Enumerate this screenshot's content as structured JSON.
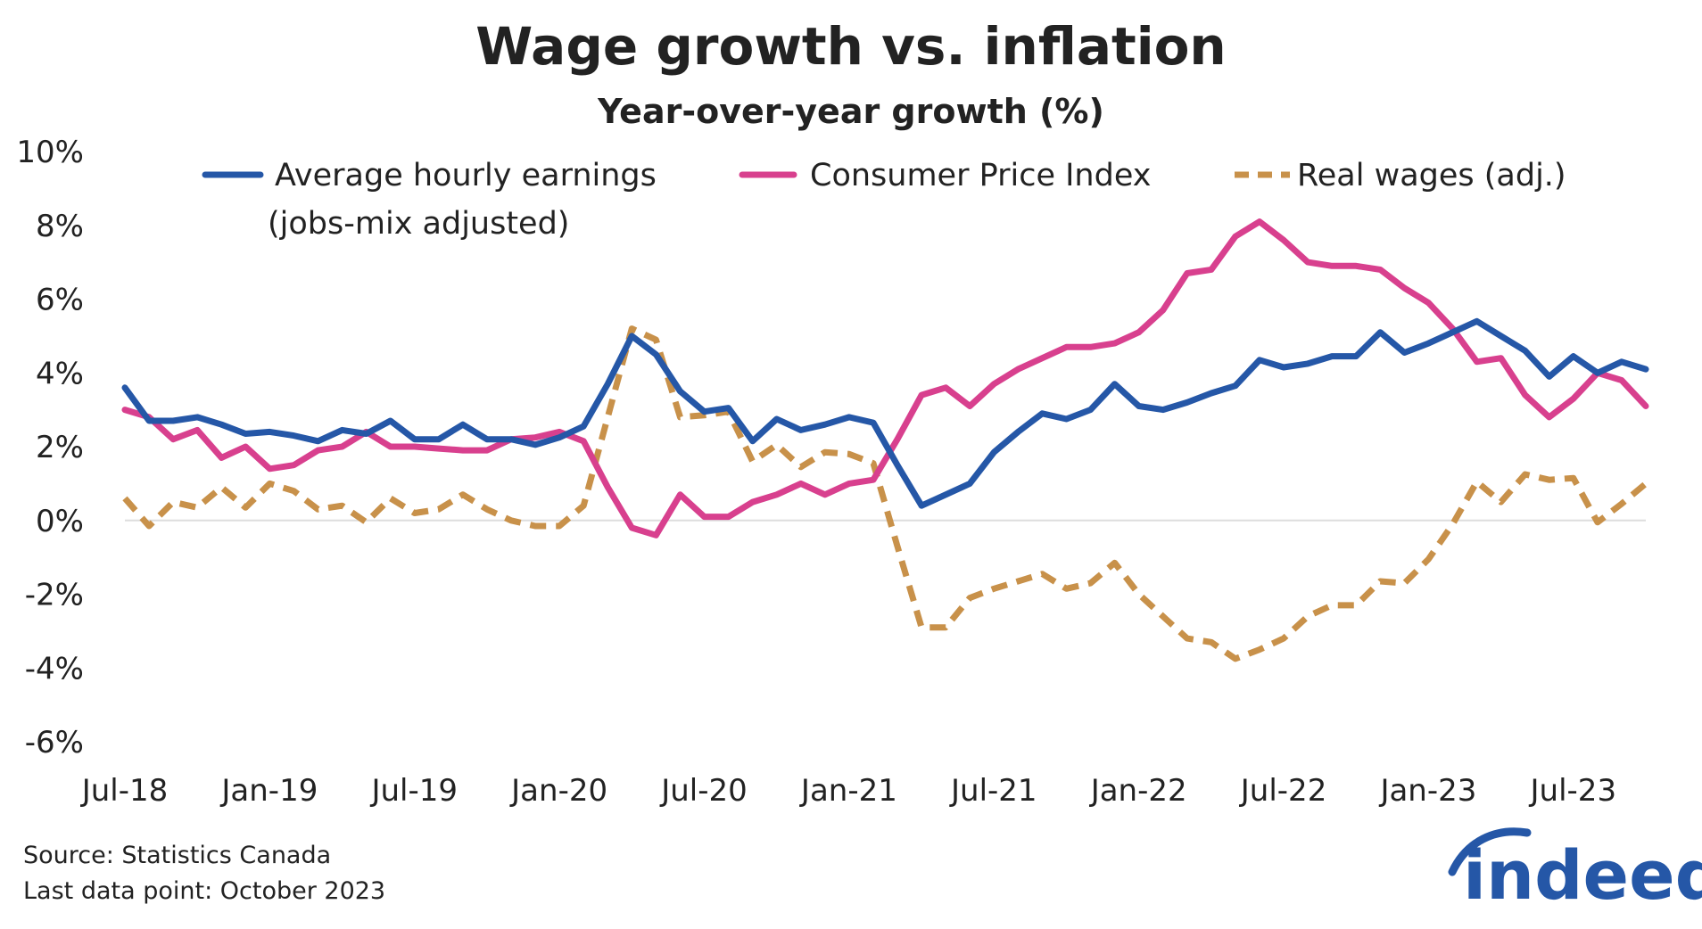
{
  "chart_data": {
    "type": "line",
    "title": "Wage growth vs. inflation",
    "subtitle": "Year-over-year growth (%)",
    "xlabel": "",
    "ylabel": "",
    "ylim": [
      -6,
      10
    ],
    "yticks": [
      -6,
      -4,
      -2,
      0,
      2,
      4,
      6,
      8,
      10
    ],
    "ytick_labels": [
      "-6%",
      "-4%",
      "-2%",
      "0%",
      "2%",
      "4%",
      "6%",
      "8%",
      "10%"
    ],
    "xtick_labels": [
      "Jul-18",
      "Jan-19",
      "Jul-19",
      "Jan-20",
      "Jul-20",
      "Jan-21",
      "Jul-21",
      "Jan-22",
      "Jul-22",
      "Jan-23",
      "Jul-23"
    ],
    "xtick_indices": [
      0,
      6,
      12,
      18,
      24,
      30,
      36,
      42,
      48,
      54,
      60
    ],
    "x_start": "Jul-18",
    "x_end": "Oct-23",
    "zero_line": true,
    "legend_position": "top",
    "series": [
      {
        "name": "Average hourly earnings",
        "name_line2": "(jobs-mix adjusted)",
        "color": "#2557a7",
        "style": "solid",
        "values": [
          3.6,
          2.7,
          2.7,
          2.8,
          2.6,
          2.35,
          2.4,
          2.3,
          2.15,
          2.45,
          2.35,
          2.7,
          2.2,
          2.2,
          2.6,
          2.2,
          2.2,
          2.05,
          2.25,
          2.55,
          3.7,
          5.0,
          4.5,
          3.5,
          2.95,
          3.05,
          2.15,
          2.75,
          2.45,
          2.6,
          2.8,
          2.65,
          1.5,
          0.4,
          0.7,
          1.0,
          1.85,
          2.4,
          2.9,
          2.75,
          3.0,
          3.7,
          3.1,
          3.0,
          3.2,
          3.45,
          3.65,
          4.35,
          4.15,
          4.25,
          4.45,
          4.45,
          5.1,
          4.55,
          4.8,
          5.1,
          5.4,
          5.0,
          4.6,
          3.9,
          4.45,
          4.0,
          4.3,
          4.1
        ]
      },
      {
        "name": "Consumer Price Index",
        "color": "#d8408e",
        "style": "solid",
        "values": [
          3.0,
          2.8,
          2.2,
          2.45,
          1.7,
          2.0,
          1.4,
          1.5,
          1.9,
          2.0,
          2.4,
          2.0,
          2.0,
          1.95,
          1.9,
          1.9,
          2.2,
          2.25,
          2.4,
          2.15,
          0.9,
          -0.2,
          -0.4,
          0.7,
          0.1,
          0.1,
          0.5,
          0.7,
          1.0,
          0.7,
          1.0,
          1.1,
          2.2,
          3.4,
          3.6,
          3.1,
          3.7,
          4.1,
          4.4,
          4.7,
          4.7,
          4.8,
          5.1,
          5.7,
          6.7,
          6.8,
          7.7,
          8.1,
          7.6,
          7.0,
          6.9,
          6.9,
          6.8,
          6.3,
          5.9,
          5.2,
          4.3,
          4.4,
          3.4,
          2.8,
          3.3,
          4.0,
          3.8,
          3.1
        ]
      },
      {
        "name": "Real wages (adj.)",
        "color": "#c8914a",
        "style": "dashed",
        "values": [
          0.6,
          -0.15,
          0.5,
          0.35,
          0.9,
          0.35,
          1.0,
          0.8,
          0.3,
          0.4,
          -0.05,
          0.6,
          0.2,
          0.3,
          0.7,
          0.3,
          0.0,
          -0.15,
          -0.15,
          0.4,
          2.8,
          5.2,
          4.9,
          2.8,
          2.85,
          2.95,
          1.6,
          2.05,
          1.45,
          1.85,
          1.8,
          1.55,
          -0.7,
          -2.9,
          -2.9,
          -2.1,
          -1.85,
          -1.65,
          -1.45,
          -1.85,
          -1.7,
          -1.15,
          -2.0,
          -2.6,
          -3.2,
          -3.3,
          -3.75,
          -3.5,
          -3.2,
          -2.6,
          -2.3,
          -2.3,
          -1.65,
          -1.7,
          -1.05,
          -0.1,
          1.05,
          0.5,
          1.25,
          1.1,
          1.15,
          -0.05,
          0.45,
          1.0
        ]
      }
    ]
  },
  "footer": {
    "source": "Source: Statistics Canada",
    "last_data_point": "Last data point: October 2023"
  },
  "logo": {
    "text": "indeed",
    "color": "#2557a7"
  }
}
